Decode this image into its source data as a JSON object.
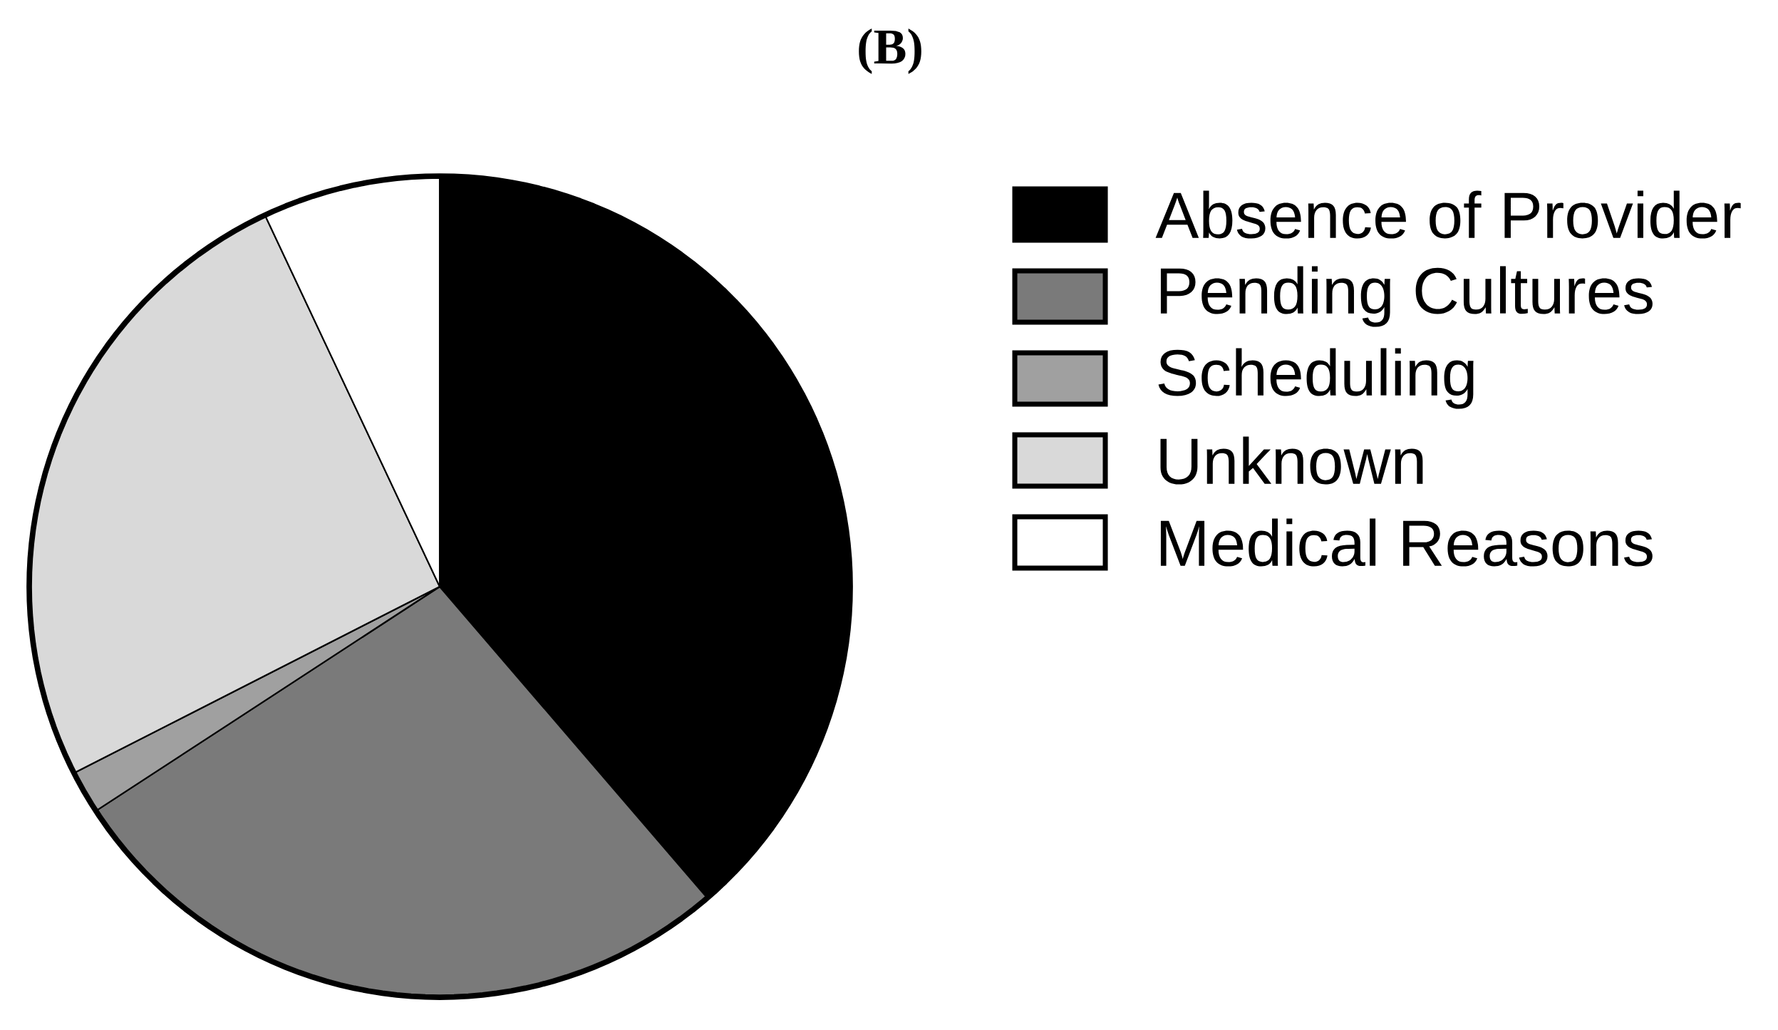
{
  "chart_data": {
    "type": "pie",
    "title": "(B)",
    "categories": [
      "Absence of Provider",
      "Pending Cultures",
      "Scheduling",
      "Unknown",
      "Medical Reasons"
    ],
    "values": [
      38.7,
      27.1,
      1.7,
      25.5,
      7.0
    ],
    "colors": [
      "#000000",
      "#7a7a7a",
      "#a0a0a0",
      "#d9d9d9",
      "#ffffff"
    ],
    "legend": "right"
  }
}
